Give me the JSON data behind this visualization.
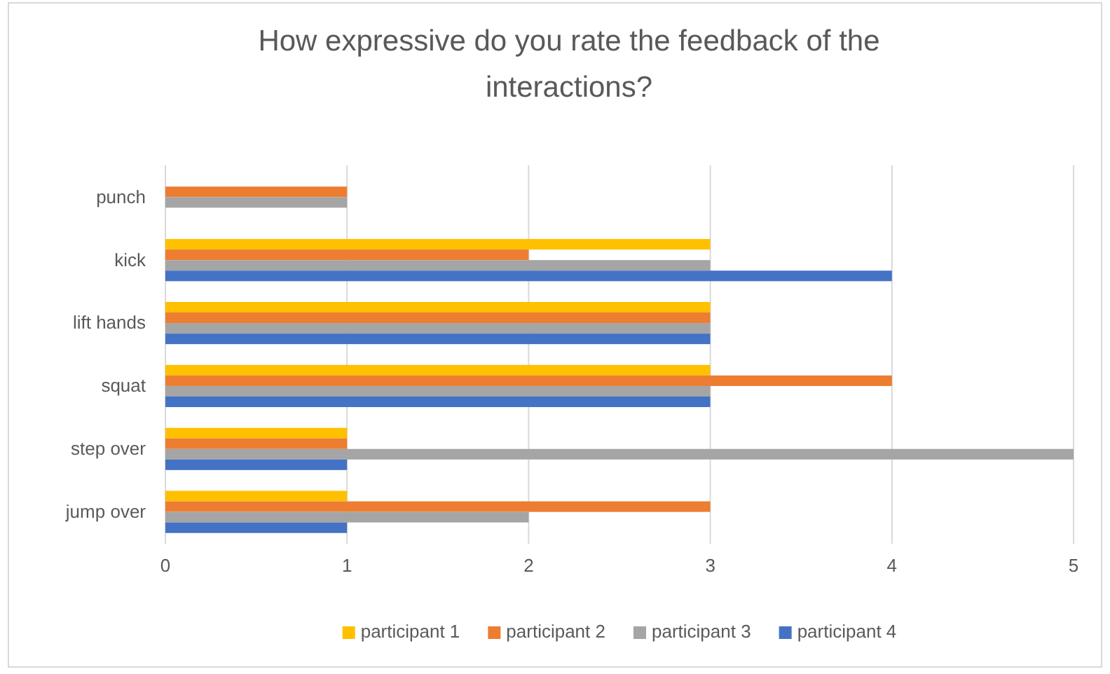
{
  "chart_data": {
    "type": "bar",
    "orientation": "horizontal",
    "title": "How expressive do you rate the feedback of the interactions?",
    "categories": [
      "punch",
      "kick",
      "lift hands",
      "squat",
      "step over",
      "jump over"
    ],
    "series": [
      {
        "name": "participant 1",
        "color": "#ffc000",
        "values": [
          0,
          3,
          3,
          3,
          1,
          1
        ]
      },
      {
        "name": "participant 2",
        "color": "#ed7d31",
        "values": [
          1,
          2,
          3,
          4,
          1,
          3
        ]
      },
      {
        "name": "participant 3",
        "color": "#a5a5a5",
        "values": [
          1,
          3,
          3,
          3,
          5,
          2
        ]
      },
      {
        "name": "participant 4",
        "color": "#4472c4",
        "values": [
          0,
          4,
          3,
          3,
          1,
          1
        ]
      }
    ],
    "xlim": [
      0,
      5
    ],
    "xticks": [
      0,
      1,
      2,
      3,
      4,
      5
    ],
    "grid": "x",
    "legend": "bottom"
  }
}
